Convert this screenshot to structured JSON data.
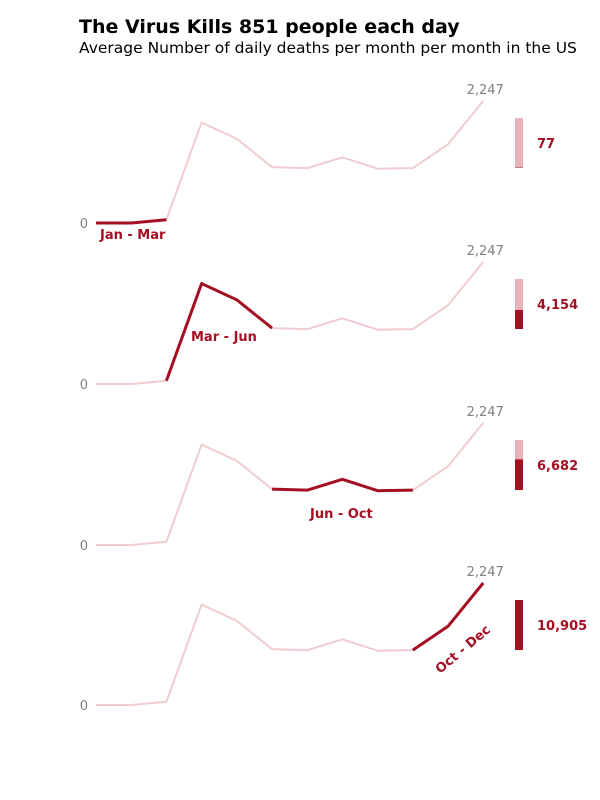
{
  "title": "The Virus Kills 851 people each day",
  "subtitle": "Average Number of daily deaths per month per month in the US",
  "colors": {
    "highlight": "#a50f22",
    "faded_line": "#f0cccf",
    "faded_bar": "#e6b3b9",
    "tick": "#808080"
  },
  "chart_data": {
    "type": "line",
    "x": [
      1,
      2,
      3,
      4,
      5,
      6,
      7,
      8,
      9,
      10,
      11,
      12
    ],
    "values": [
      0,
      0,
      60,
      1850,
      1550,
      1030,
      1010,
      1210,
      1000,
      1010,
      1450,
      2247
    ],
    "ylim": [
      0,
      2247
    ],
    "ytick_labels": [
      "0",
      "2,247"
    ],
    "panels": [
      {
        "label": "Jan - Mar",
        "start": 0,
        "end": 2,
        "total": 77,
        "total_label": "77"
      },
      {
        "label": "Mar - Jun",
        "start": 2,
        "end": 5,
        "total": 4154,
        "total_label": "4,154"
      },
      {
        "label": "Jun - Oct",
        "start": 5,
        "end": 9,
        "total": 6682,
        "total_label": "6,682"
      },
      {
        "label": "Oct - Dec",
        "start": 9,
        "end": 11,
        "total": 10905,
        "total_label": "10,905"
      }
    ],
    "bar_max": 10905
  }
}
